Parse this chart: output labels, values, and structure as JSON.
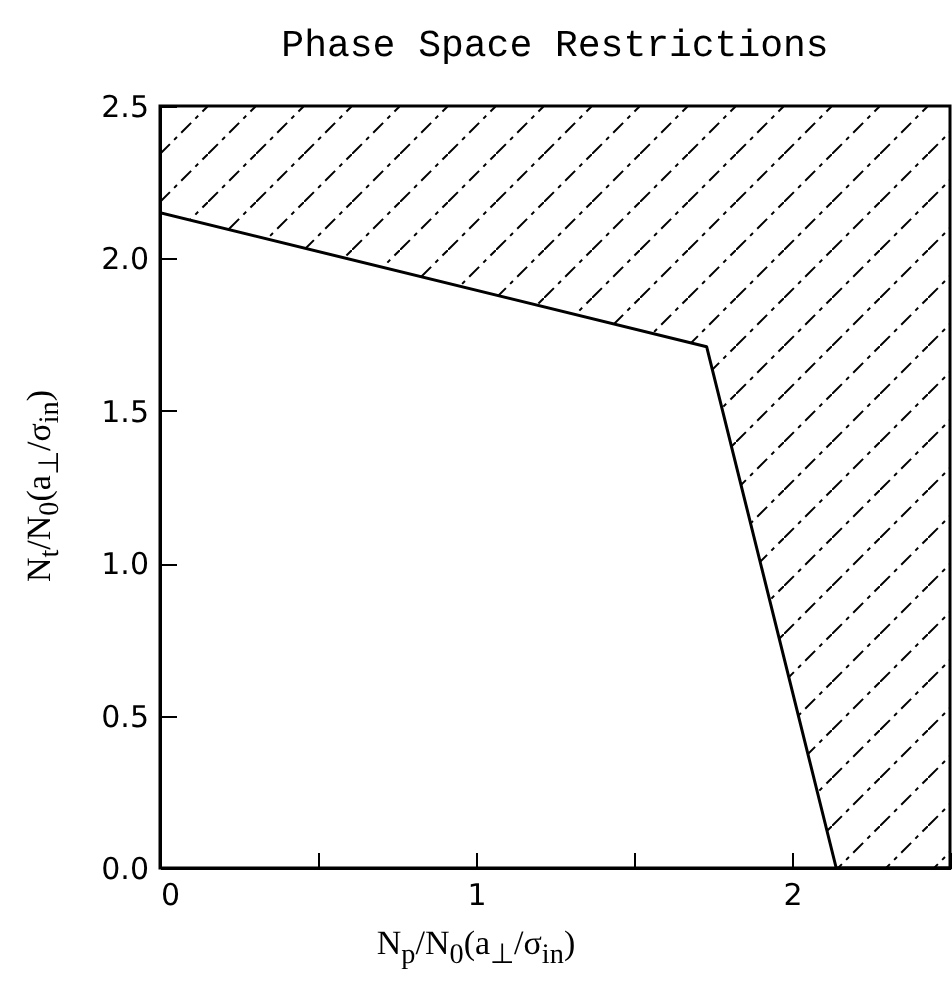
{
  "chart_data": {
    "type": "line",
    "title": "Phase Space Restrictions",
    "xlabel": "N$_{p}$/N$_{0}$(a$_{⊥}$/σ$_{in}$)",
    "ylabel": "N$_{t}$/N$_{0}$(a$_{⊥}$/σ$_{in}$)",
    "series": [
      {
        "color": "#000000",
        "x": [
          0,
          1.73,
          2.14,
          2.5
        ],
        "values": [
          2.15,
          1.71,
          0,
          0
        ],
        "lower": [
          2.15,
          1.71,
          0,
          0
        ],
        "upper": [
          2.5,
          2.5,
          2.5,
          2.5
        ]
      }
    ],
    "xlim": [
      0,
      2.5
    ],
    "ylim": [
      0,
      2.5
    ],
    "xticks": [
      0,
      {
        "value": 0.5,
        "label": null
      },
      1,
      {
        "value": 1.5,
        "label": null
      },
      2,
      {
        "value": 2.5,
        "label": null
      }
    ],
    "yticks": [
      {
        "value": 0,
        "label": "0.0"
      },
      0.5,
      {
        "value": 1,
        "label": "1.0"
      },
      1.5,
      {
        "value": 2,
        "label": "2.0"
      },
      2.5
    ],
    "grid": false
  }
}
